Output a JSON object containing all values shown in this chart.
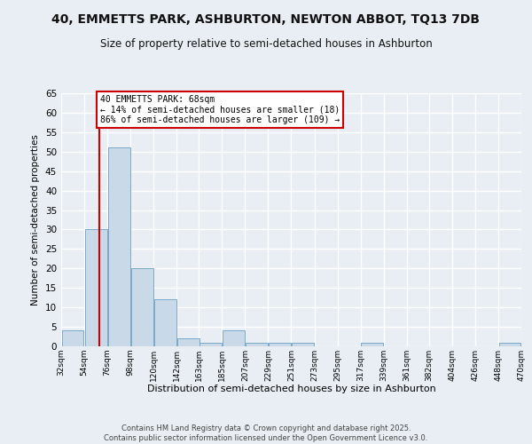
{
  "title_line1": "40, EMMETTS PARK, ASHBURTON, NEWTON ABBOT, TQ13 7DB",
  "title_line2": "Size of property relative to semi-detached houses in Ashburton",
  "xlabel": "Distribution of semi-detached houses by size in Ashburton",
  "ylabel": "Number of semi-detached properties",
  "bins": [
    32,
    54,
    76,
    98,
    120,
    142,
    163,
    185,
    207,
    229,
    251,
    273,
    295,
    317,
    339,
    361,
    382,
    404,
    426,
    448,
    470
  ],
  "counts": [
    4,
    30,
    51,
    20,
    12,
    2,
    1,
    4,
    1,
    1,
    1,
    0,
    0,
    1,
    0,
    0,
    0,
    0,
    0,
    1
  ],
  "bar_color": "#c9d9e8",
  "bar_edge_color": "#7aaac8",
  "property_size": 68,
  "red_line_color": "#cc0000",
  "annotation_text": "40 EMMETTS PARK: 68sqm\n← 14% of semi-detached houses are smaller (18)\n86% of semi-detached houses are larger (109) →",
  "annotation_box_color": "#ffffff",
  "annotation_box_edge": "#cc0000",
  "ylim": [
    0,
    65
  ],
  "yticks": [
    0,
    5,
    10,
    15,
    20,
    25,
    30,
    35,
    40,
    45,
    50,
    55,
    60,
    65
  ],
  "background_color": "#e8eef4",
  "plot_background": "#e8eef4",
  "grid_color": "#ffffff",
  "footer_text": "Contains HM Land Registry data © Crown copyright and database right 2025.\nContains public sector information licensed under the Open Government Licence v3.0.",
  "tick_labels": [
    "32sqm",
    "54sqm",
    "76sqm",
    "98sqm",
    "120sqm",
    "142sqm",
    "163sqm",
    "185sqm",
    "207sqm",
    "229sqm",
    "251sqm",
    "273sqm",
    "295sqm",
    "317sqm",
    "339sqm",
    "361sqm",
    "382sqm",
    "404sqm",
    "426sqm",
    "448sqm",
    "470sqm"
  ]
}
